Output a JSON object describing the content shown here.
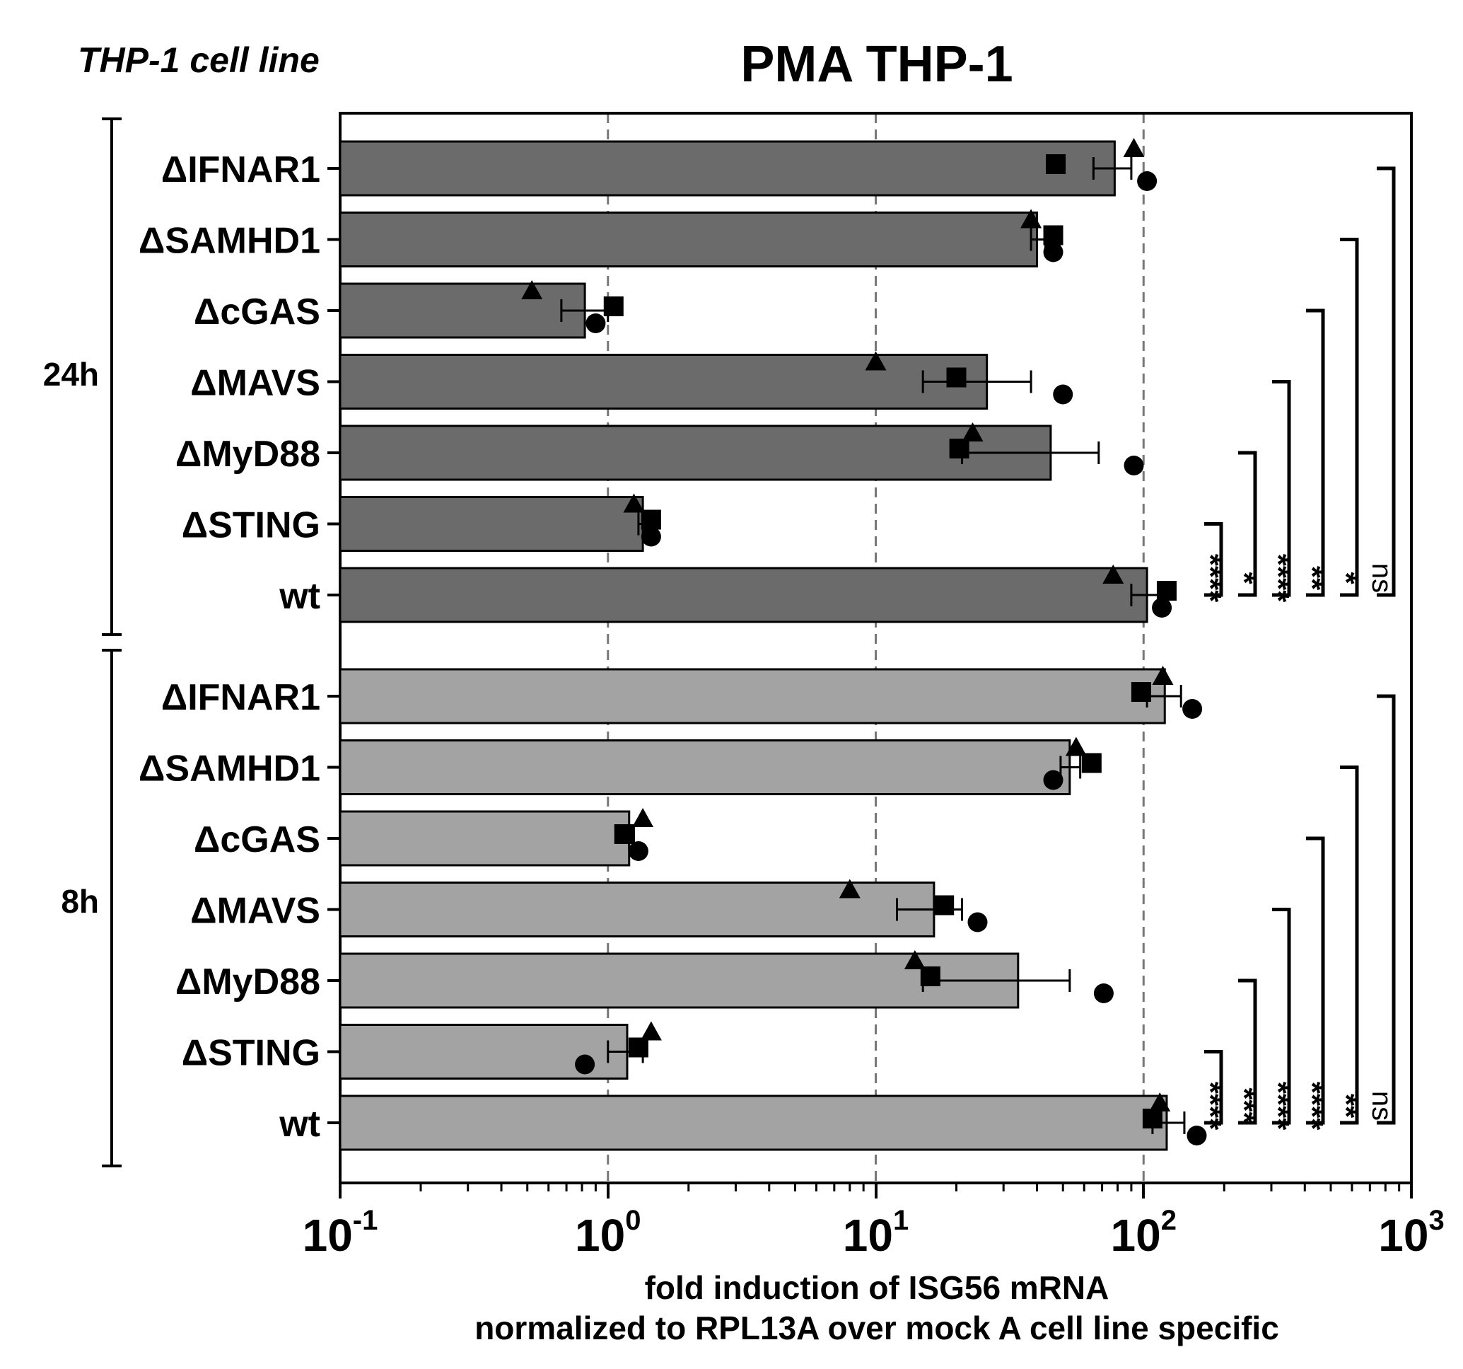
{
  "corner_label": "THP-1 cell line",
  "chart_data": {
    "type": "bar",
    "orientation": "horizontal",
    "title": "PMA THP-1",
    "xlabel_line1": "fold induction of ISG56 mRNA",
    "xlabel_line2": "normalized to RPL13A over mock A cell line specific",
    "xscale": "log",
    "xlim": [
      0.1,
      1000
    ],
    "ticks": [
      {
        "value": 0.1,
        "base": "10",
        "exp": "-1"
      },
      {
        "value": 1,
        "base": "10",
        "exp": "0"
      },
      {
        "value": 10,
        "base": "10",
        "exp": "1"
      },
      {
        "value": 100,
        "base": "10",
        "exp": "2"
      },
      {
        "value": 1000,
        "base": "10",
        "exp": "3"
      }
    ],
    "gridlines": [
      1,
      10,
      100
    ],
    "groups": [
      {
        "label": "24h",
        "color": "#6b6b6b",
        "bars": [
          {
            "label": "ΔIFNAR1",
            "value": 78,
            "error": [
              65,
              90
            ],
            "points": {
              "triangle": 92,
              "square": 47,
              "circle": 103
            }
          },
          {
            "label": "ΔSAMHD1",
            "value": 40,
            "error": [
              38,
              43
            ],
            "points": {
              "triangle": 38,
              "square": 46,
              "circle": 46
            }
          },
          {
            "label": "ΔcGAS",
            "value": 0.82,
            "error": [
              0.67,
              1.0
            ],
            "points": {
              "triangle": 0.52,
              "square": 1.05,
              "circle": 0.9
            }
          },
          {
            "label": "ΔMAVS",
            "value": 26,
            "error": [
              15,
              38
            ],
            "points": {
              "triangle": 10,
              "square": 20,
              "circle": 50
            }
          },
          {
            "label": "ΔMyD88",
            "value": 45,
            "error": [
              21,
              68
            ],
            "points": {
              "triangle": 23,
              "square": 20.5,
              "circle": 92
            }
          },
          {
            "label": "ΔSTING",
            "value": 1.35,
            "error": [
              1.3,
              1.4
            ],
            "points": {
              "triangle": 1.25,
              "square": 1.45,
              "circle": 1.45
            }
          },
          {
            "label": "wt",
            "value": 103,
            "error": [
              90,
              118
            ],
            "points": {
              "triangle": 77,
              "square": 122,
              "circle": 117
            }
          }
        ],
        "significance": [
          "****",
          "*",
          "****",
          "**",
          "*",
          "ns"
        ]
      },
      {
        "label": "8h",
        "color": "#a3a3a3",
        "bars": [
          {
            "label": "ΔIFNAR1",
            "value": 120,
            "error": [
              103,
              138
            ],
            "points": {
              "triangle": 118,
              "square": 98,
              "circle": 152
            }
          },
          {
            "label": "ΔSAMHD1",
            "value": 53,
            "error": [
              49,
              58
            ],
            "points": {
              "triangle": 56,
              "square": 64,
              "circle": 46
            }
          },
          {
            "label": "ΔcGAS",
            "value": 1.2,
            "error": [
              1.2,
              1.25
            ],
            "points": {
              "triangle": 1.35,
              "square": 1.15,
              "circle": 1.3
            }
          },
          {
            "label": "ΔMAVS",
            "value": 16.5,
            "error": [
              12,
              21
            ],
            "points": {
              "triangle": 8,
              "square": 18,
              "circle": 24
            }
          },
          {
            "label": "ΔMyD88",
            "value": 34,
            "error": [
              15,
              53
            ],
            "points": {
              "triangle": 14,
              "square": 16,
              "circle": 71
            }
          },
          {
            "label": "ΔSTING",
            "value": 1.18,
            "error": [
              1.0,
              1.35
            ],
            "points": {
              "triangle": 1.45,
              "square": 1.3,
              "circle": 0.82
            }
          },
          {
            "label": "wt",
            "value": 122,
            "error": [
              108,
              142
            ],
            "points": {
              "triangle": 115,
              "square": 108,
              "circle": 158
            }
          }
        ],
        "significance": [
          "****",
          "***",
          "****",
          "****",
          "**",
          "ns"
        ]
      }
    ]
  }
}
